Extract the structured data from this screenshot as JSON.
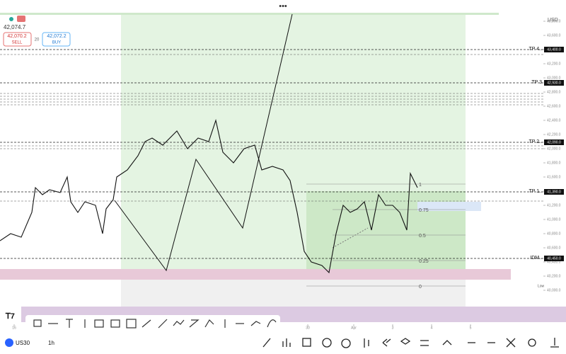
{
  "ui": {
    "quote": "42,074.7",
    "sell_price": "42,070.2",
    "sell": "SELL",
    "spread": "20",
    "buy_price": "42,072.2",
    "buy": "BUY",
    "currency": "USD",
    "symbol": "US30",
    "interval": "1h",
    "low_tag": "Low"
  },
  "chart_data": {
    "type": "line",
    "price": {
      "name": "US30",
      "color": "#111111",
      "x": [
        0,
        3,
        6,
        9,
        10,
        12,
        14,
        17,
        19,
        20,
        22,
        24,
        27,
        29,
        30,
        32,
        33,
        36,
        39,
        41,
        43,
        46,
        50,
        53,
        56,
        59,
        61,
        63,
        66,
        69,
        72,
        74,
        77,
        80,
        82,
        84,
        86,
        88,
        91,
        93,
        95,
        97,
        99,
        101,
        103,
        105,
        107,
        109,
        111,
        113,
        115,
        116,
        118
      ],
      "values": [
        40700,
        40800,
        40750,
        41100,
        41450,
        41350,
        41420,
        41380,
        41600,
        41250,
        41100,
        41250,
        41200,
        40800,
        41150,
        41280,
        41600,
        41700,
        41900,
        42100,
        42150,
        42050,
        42250,
        42000,
        42150,
        42100,
        42400,
        41950,
        41800,
        42000,
        42050,
        41700,
        41750,
        41700,
        41550,
        41100,
        40550,
        40400,
        40350,
        40250,
        40800,
        41200,
        41100,
        41150,
        41250,
        40850,
        41350,
        41200,
        41200,
        41100,
        40850,
        41650,
        41450
      ]
    },
    "xlim": [
      0,
      160
    ],
    "xticks": [
      {
        "value": 4,
        "label": "16"
      },
      {
        "value": 87,
        "label": "30"
      },
      {
        "value": 100,
        "label": "Apr"
      },
      {
        "value": 111,
        "label": "3"
      },
      {
        "value": 122,
        "label": "4"
      },
      {
        "value": 133,
        "label": "5"
      }
    ],
    "ylim": [
      39700,
      43900
    ],
    "yticks": [
      {
        "value": 43800,
        "label": "43,800.0"
      },
      {
        "value": 43600,
        "label": "43,600.0"
      },
      {
        "value": 43400,
        "label": "43,400.0"
      },
      {
        "value": 43200,
        "label": "43,200.0"
      },
      {
        "value": 43000,
        "label": "43,000.0"
      },
      {
        "value": 42800,
        "label": "42,800.0"
      },
      {
        "value": 42600,
        "label": "42,600.0"
      },
      {
        "value": 42400,
        "label": "42,400.0"
      },
      {
        "value": 42200,
        "label": "42,200.0"
      },
      {
        "value": 42000,
        "label": "42,000.0"
      },
      {
        "value": 41800,
        "label": "41,800.0"
      },
      {
        "value": 41600,
        "label": "41,600.0"
      },
      {
        "value": 41400,
        "label": "41,400.0"
      },
      {
        "value": 41200,
        "label": "41,200.0"
      },
      {
        "value": 41000,
        "label": "41,000.0"
      },
      {
        "value": 40800,
        "label": "40,800.0"
      },
      {
        "value": 40600,
        "label": "40,600.0"
      },
      {
        "value": 40400,
        "label": "40,400.0"
      },
      {
        "value": 40200,
        "label": "40,200.0"
      },
      {
        "value": 40000,
        "label": "40,000.0"
      }
    ],
    "levels": [
      {
        "label": "TP 4..",
        "price": {
          "value": 43400,
          "label": "43,400.0"
        }
      },
      {
        "label": "TP 3",
        "price": {
          "value": 42930,
          "label": "42,930.0"
        }
      },
      {
        "label": "TP 2..",
        "price": {
          "value": 42090,
          "label": "42,090.0"
        }
      },
      {
        "label": "TP 1..",
        "price": {
          "value": 41390,
          "label": "41,390.0"
        }
      },
      {
        "label": "IDM..",
        "price": {
          "value": 40450,
          "label": "40,450.0"
        }
      }
    ],
    "other_levels": [
      43330,
      42780,
      42740,
      42700,
      42660,
      42620,
      42040,
      42000,
      41260
    ],
    "fib": {
      "high": 41500,
      "low": 40060,
      "levels": [
        1,
        0.75,
        0.5,
        0.25,
        0
      ]
    }
  }
}
